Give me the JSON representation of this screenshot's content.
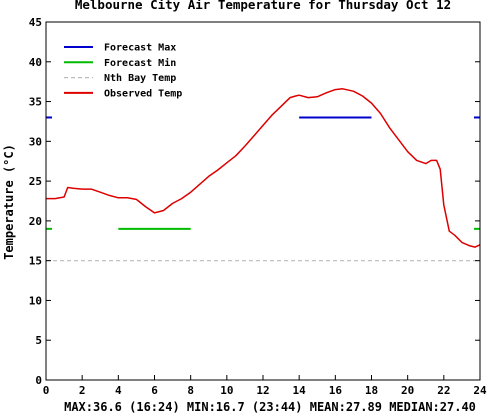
{
  "chart_data": {
    "type": "line",
    "title": "Melbourne City Air Temperature for Thursday Oct 12",
    "ylabel": "Temperature (°C)",
    "xlabel": "",
    "xlim": [
      0,
      24
    ],
    "ylim": [
      0,
      45
    ],
    "x_ticks": [
      0,
      2,
      4,
      6,
      8,
      10,
      12,
      14,
      16,
      18,
      20,
      22,
      24
    ],
    "y_ticks": [
      0,
      5,
      10,
      15,
      20,
      25,
      30,
      35,
      40,
      45
    ],
    "grid": false,
    "legend_position": "top-left",
    "series": [
      {
        "name": "Forecast Max",
        "color": "#0000cc",
        "style": "segment",
        "value": 33,
        "x_range": [
          14,
          18
        ],
        "edge_markers": true
      },
      {
        "name": "Forecast Min",
        "color": "#00bb00",
        "style": "segment",
        "value": 19,
        "x_range": [
          4,
          8
        ],
        "edge_markers": true
      },
      {
        "name": "Nth Bay Temp",
        "color": "#bbbbbb",
        "style": "dashed-hline",
        "value": 15
      },
      {
        "name": "Observed Temp",
        "color": "#dd0000",
        "style": "line",
        "x": [
          0,
          0.5,
          1,
          1.2,
          1.5,
          2,
          2.5,
          3,
          3.5,
          4,
          4.5,
          5,
          5.5,
          6,
          6.5,
          7,
          7.5,
          8,
          8.5,
          9,
          9.5,
          10,
          10.5,
          11,
          11.5,
          12,
          12.5,
          13,
          13.5,
          13.8,
          14,
          14.5,
          15,
          15.5,
          16,
          16.4,
          17,
          17.5,
          18,
          18.5,
          19,
          19.5,
          20,
          20.5,
          21,
          21.3,
          21.6,
          21.8,
          22,
          22.3,
          22.6,
          23,
          23.4,
          23.73,
          24
        ],
        "values": [
          22.8,
          22.8,
          23.0,
          24.2,
          24.1,
          24.0,
          24.0,
          23.6,
          23.2,
          22.9,
          22.9,
          22.7,
          21.8,
          21.0,
          21.3,
          22.2,
          22.8,
          23.6,
          24.6,
          25.6,
          26.4,
          27.3,
          28.2,
          29.4,
          30.7,
          32.0,
          33.3,
          34.4,
          35.5,
          35.7,
          35.8,
          35.5,
          35.6,
          36.1,
          36.5,
          36.6,
          36.3,
          35.7,
          34.8,
          33.5,
          31.7,
          30.2,
          28.7,
          27.6,
          27.2,
          27.6,
          27.6,
          26.5,
          22.0,
          18.7,
          18.2,
          17.3,
          16.9,
          16.7,
          17.0
        ]
      }
    ],
    "stats_label": "MAX:36.6 (16:24) MIN:16.7 (23:44) MEAN:27.89 MEDIAN:27.40"
  }
}
